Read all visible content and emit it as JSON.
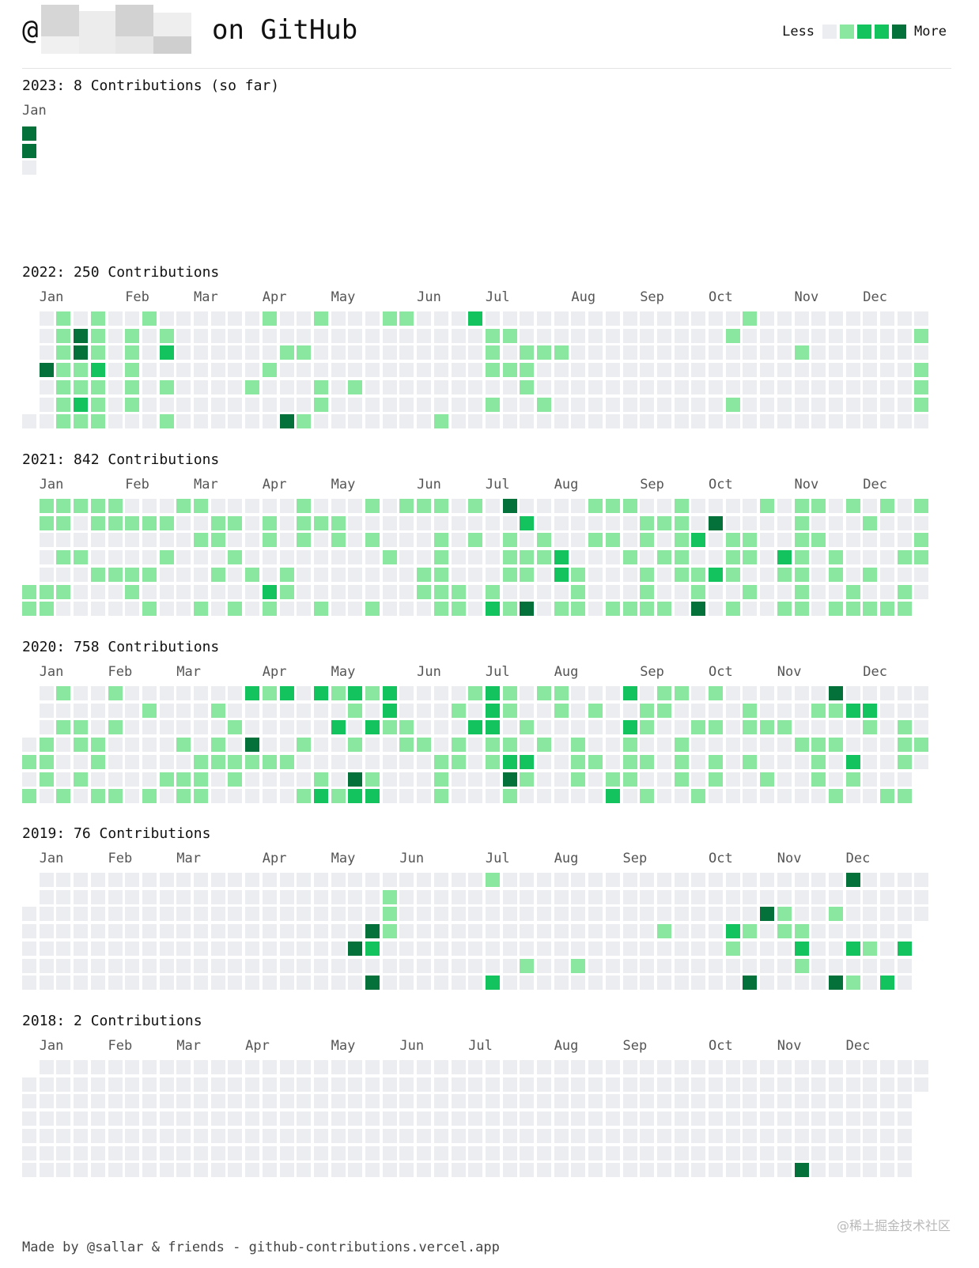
{
  "header": {
    "at": "@",
    "title": "on GitHub",
    "legend_less": "Less",
    "legend_more": "More",
    "legend_colors": [
      "#ebedf0",
      "#8ae7a0",
      "#13c45e",
      "#05713a"
    ]
  },
  "colors": {
    "level0": "#ebedf0",
    "level1": "#8ae7a0",
    "level2": "#13c45e",
    "level3": "#05713a"
  },
  "years": [
    {
      "year": "2023",
      "title": "2023: 8 Contributions (so far)",
      "months": [
        "Jan"
      ],
      "weeks": 1,
      "start_day": 0,
      "days_in_year": 3,
      "contributions": [
        [
          0,
          0,
          3
        ],
        [
          0,
          1,
          3
        ]
      ]
    },
    {
      "year": "2022",
      "title": "2022: 250 Contributions",
      "months": [
        "Jan",
        "Feb",
        "Mar",
        "Apr",
        "May",
        "Jun",
        "Jul",
        "Aug",
        "Sep",
        "Oct",
        "Nov",
        "Dec"
      ],
      "weeks": 53,
      "start_day": 6,
      "days_in_year": 365,
      "contributions": [
        [
          2,
          0,
          1
        ],
        [
          3,
          1,
          3
        ],
        [
          2,
          2,
          1
        ],
        [
          3,
          2,
          3
        ],
        [
          1,
          3,
          3
        ],
        [
          4,
          3,
          2
        ],
        [
          3,
          5,
          2
        ],
        [
          4,
          0,
          1
        ],
        [
          7,
          0,
          1
        ],
        [
          8,
          2,
          2
        ],
        [
          14,
          0,
          1
        ],
        [
          17,
          0,
          1
        ],
        [
          21,
          0,
          1
        ],
        [
          22,
          0,
          1
        ],
        [
          26,
          0,
          2
        ],
        [
          42,
          0,
          1
        ],
        [
          52,
          1,
          1
        ],
        [
          15,
          6,
          3
        ],
        [
          24,
          6,
          1
        ],
        [
          27,
          1,
          1
        ],
        [
          28,
          1,
          1
        ]
      ],
      "fill_ranges": [
        [
          2,
          1
        ],
        [
          2,
          3
        ],
        [
          2,
          4
        ],
        [
          2,
          5
        ],
        [
          2,
          6
        ],
        [
          3,
          3
        ],
        [
          3,
          4
        ],
        [
          3,
          6
        ],
        [
          4,
          1
        ],
        [
          4,
          2
        ],
        [
          4,
          4
        ],
        [
          4,
          5
        ],
        [
          4,
          6
        ],
        [
          6,
          1
        ],
        [
          6,
          2
        ],
        [
          6,
          3
        ],
        [
          6,
          4
        ],
        [
          6,
          5
        ],
        [
          8,
          1
        ],
        [
          8,
          2
        ],
        [
          8,
          4
        ],
        [
          8,
          6
        ],
        [
          13,
          4
        ],
        [
          14,
          3
        ],
        [
          15,
          2
        ],
        [
          16,
          2
        ],
        [
          16,
          6
        ],
        [
          17,
          4
        ],
        [
          17,
          5
        ],
        [
          19,
          4
        ],
        [
          27,
          2
        ],
        [
          27,
          3
        ],
        [
          27,
          5
        ],
        [
          28,
          3
        ],
        [
          29,
          2
        ],
        [
          29,
          3
        ],
        [
          29,
          4
        ],
        [
          30,
          2
        ],
        [
          30,
          5
        ],
        [
          31,
          2
        ],
        [
          41,
          1
        ],
        [
          41,
          5
        ],
        [
          45,
          2
        ],
        [
          52,
          3
        ],
        [
          52,
          4
        ],
        [
          52,
          5
        ]
      ]
    },
    {
      "year": "2021",
      "title": "2021: 842 Contributions",
      "months": [
        "Jan",
        "Feb",
        "Mar",
        "Apr",
        "May",
        "Jun",
        "Jul",
        "Aug",
        "Sep",
        "Oct",
        "Nov",
        "Dec"
      ],
      "weeks": 53,
      "start_day": 5,
      "days_in_year": 365,
      "contributions": [
        [
          28,
          0,
          3
        ],
        [
          29,
          1,
          2
        ],
        [
          29,
          6,
          3
        ],
        [
          27,
          6,
          2
        ],
        [
          31,
          3,
          2
        ],
        [
          31,
          4,
          2
        ],
        [
          14,
          5,
          2
        ],
        [
          40,
          1,
          3
        ],
        [
          39,
          2,
          2
        ],
        [
          40,
          4,
          2
        ],
        [
          39,
          6,
          3
        ],
        [
          44,
          3,
          2
        ]
      ],
      "density": 0.38
    },
    {
      "year": "2020",
      "title": "2020: 758 Contributions",
      "months": [
        "Jan",
        "Feb",
        "Mar",
        "Apr",
        "May",
        "Jun",
        "Jul",
        "Aug",
        "Sep",
        "Oct",
        "Nov",
        "Dec"
      ],
      "weeks": 53,
      "start_day": 3,
      "days_in_year": 366,
      "contributions": [
        [
          13,
          0,
          2
        ],
        [
          14,
          0,
          1
        ],
        [
          15,
          0,
          2
        ],
        [
          17,
          0,
          2
        ],
        [
          19,
          0,
          2
        ],
        [
          20,
          0,
          1
        ],
        [
          21,
          0,
          2
        ],
        [
          27,
          0,
          2
        ],
        [
          35,
          0,
          2
        ],
        [
          47,
          0,
          3
        ],
        [
          13,
          3,
          3
        ],
        [
          18,
          2,
          2
        ],
        [
          20,
          2,
          2
        ],
        [
          19,
          5,
          3
        ],
        [
          17,
          6,
          2
        ],
        [
          19,
          6,
          2
        ],
        [
          20,
          6,
          2
        ],
        [
          21,
          1,
          2
        ],
        [
          27,
          1,
          2
        ],
        [
          26,
          2,
          2
        ],
        [
          27,
          2,
          2
        ],
        [
          28,
          4,
          2
        ],
        [
          29,
          4,
          2
        ],
        [
          28,
          5,
          3
        ],
        [
          35,
          2,
          2
        ],
        [
          34,
          6,
          2
        ],
        [
          48,
          1,
          2
        ],
        [
          49,
          1,
          2
        ],
        [
          48,
          4,
          2
        ]
      ],
      "density": 0.3
    },
    {
      "year": "2019",
      "title": "2019: 76 Contributions",
      "months": [
        "Jan",
        "Feb",
        "Mar",
        "Apr",
        "May",
        "Jun",
        "Jul",
        "Aug",
        "Sep",
        "Oct",
        "Nov",
        "Dec"
      ],
      "weeks": 53,
      "start_day": 2,
      "days_in_year": 365,
      "contributions": [
        [
          27,
          0,
          1
        ],
        [
          48,
          0,
          3
        ],
        [
          21,
          1,
          1
        ],
        [
          21,
          2,
          1
        ],
        [
          21,
          3,
          1
        ],
        [
          20,
          3,
          3
        ],
        [
          20,
          4,
          2
        ],
        [
          19,
          4,
          3
        ],
        [
          20,
          6,
          3
        ],
        [
          27,
          6,
          2
        ],
        [
          29,
          5,
          1
        ],
        [
          32,
          5,
          1
        ],
        [
          37,
          3,
          1
        ],
        [
          43,
          2,
          3
        ],
        [
          44,
          2,
          1
        ],
        [
          47,
          2,
          1
        ],
        [
          41,
          3,
          2
        ],
        [
          42,
          3,
          1
        ],
        [
          44,
          3,
          1
        ],
        [
          45,
          3,
          1
        ],
        [
          41,
          4,
          1
        ],
        [
          45,
          4,
          2
        ],
        [
          48,
          4,
          2
        ],
        [
          49,
          4,
          1
        ],
        [
          51,
          4,
          2
        ],
        [
          45,
          5,
          1
        ],
        [
          42,
          6,
          3
        ],
        [
          47,
          6,
          3
        ],
        [
          48,
          6,
          1
        ],
        [
          50,
          6,
          2
        ]
      ]
    },
    {
      "year": "2018",
      "title": "2018: 2 Contributions",
      "months": [
        "Jan",
        "Feb",
        "Mar",
        "Apr",
        "May",
        "Jun",
        "Jul",
        "Aug",
        "Sep",
        "Oct",
        "Nov",
        "Dec"
      ],
      "weeks": 53,
      "start_day": 1,
      "days_in_year": 365,
      "contributions": [
        [
          45,
          6,
          3
        ]
      ]
    }
  ],
  "footer": "Made by @sallar & friends - github-contributions.vercel.app",
  "watermark": "@稀土掘金技术社区"
}
